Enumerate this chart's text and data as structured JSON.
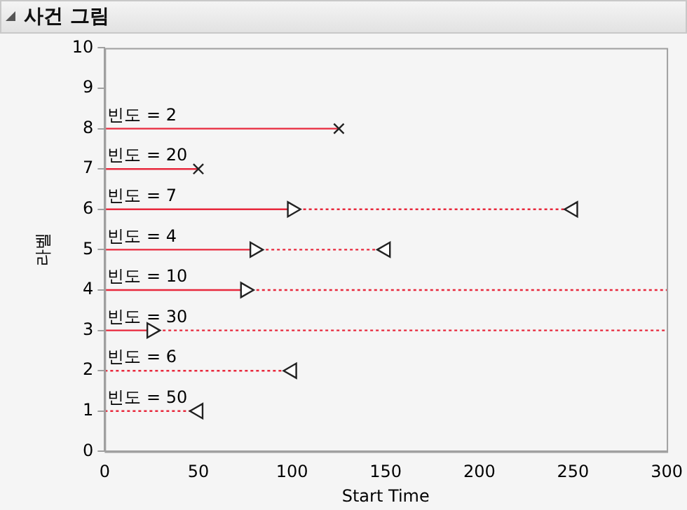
{
  "chart_data": {
    "type": "line",
    "title": "사건 그림",
    "xlabel": "Start Time",
    "ylabel": "라벨",
    "xlim": [
      0,
      300
    ],
    "xticks": [
      0,
      50,
      100,
      150,
      200,
      250,
      300
    ],
    "ylim": [
      0,
      10
    ],
    "yticks": [
      0,
      1,
      2,
      3,
      4,
      5,
      6,
      7,
      8,
      9,
      10
    ],
    "grid": false,
    "legend": false,
    "series": [
      {
        "color": "#e8283c",
        "x": [
          0,
          125
        ],
        "values": [
          8,
          8
        ],
        "line_style": "solid",
        "marker": "cross"
      },
      {
        "color": "#e8283c",
        "x": [
          0,
          50
        ],
        "values": [
          7,
          7
        ],
        "line_style": "solid",
        "marker": "cross"
      },
      {
        "color": "#e8283c",
        "x": [
          0,
          100
        ],
        "values": [
          6,
          6
        ],
        "line_style": "solid",
        "marker": "triangle"
      },
      {
        "color": "#e8283c",
        "x": [
          100,
          250
        ],
        "values": [
          6,
          6
        ],
        "line_style": "dotted",
        "marker": "triangle"
      },
      {
        "color": "#e8283c",
        "x": [
          0,
          80
        ],
        "values": [
          5,
          5
        ],
        "line_style": "solid",
        "marker": "triangle"
      },
      {
        "color": "#e8283c",
        "x": [
          80,
          150
        ],
        "values": [
          5,
          5
        ],
        "line_style": "dotted",
        "marker": "triangle"
      },
      {
        "color": "#e8283c",
        "x": [
          0,
          75
        ],
        "values": [
          4,
          4
        ],
        "line_style": "solid",
        "marker": "triangle"
      },
      {
        "color": "#e8283c",
        "x": [
          75,
          300
        ],
        "values": [
          4,
          4
        ],
        "line_style": "dotted",
        "marker": "none"
      },
      {
        "color": "#e8283c",
        "x": [
          0,
          25
        ],
        "values": [
          3,
          3
        ],
        "line_style": "solid",
        "marker": "triangle"
      },
      {
        "color": "#e8283c",
        "x": [
          25,
          300
        ],
        "values": [
          3,
          3
        ],
        "line_style": "dotted",
        "marker": "none"
      },
      {
        "color": "#e8283c",
        "x": [
          0,
          100
        ],
        "values": [
          2,
          2
        ],
        "line_style": "dotted",
        "marker": "triangle"
      },
      {
        "color": "#e8283c",
        "x": [
          0,
          50
        ],
        "values": [
          1,
          1
        ],
        "line_style": "dotted",
        "marker": "triangle"
      }
    ],
    "annotations": [
      {
        "text": "빈도 = 2",
        "y": 8
      },
      {
        "text": "빈도 = 20",
        "y": 7
      },
      {
        "text": "빈도 = 7",
        "y": 6
      },
      {
        "text": "빈도 = 4",
        "y": 5
      },
      {
        "text": "빈도 = 10",
        "y": 4
      },
      {
        "text": "빈도 = 30",
        "y": 3
      },
      {
        "text": "빈도 = 6",
        "y": 2
      },
      {
        "text": "빈도 = 50",
        "y": 1
      }
    ]
  }
}
